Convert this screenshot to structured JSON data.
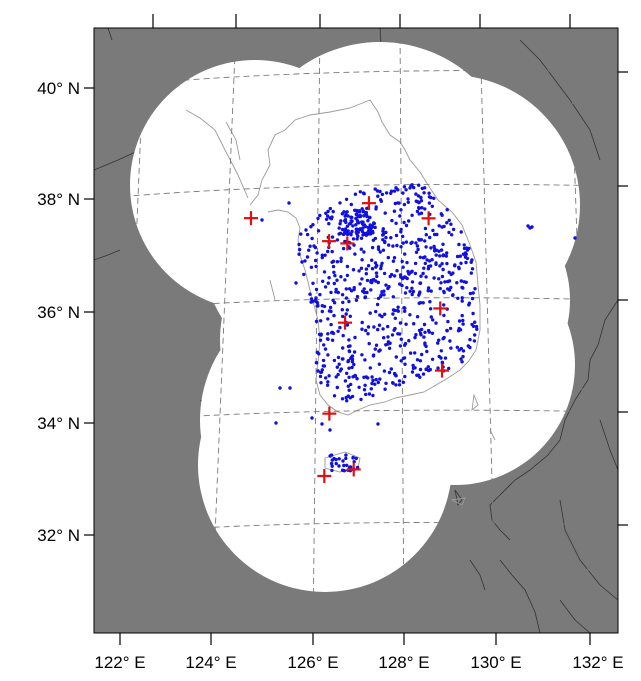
{
  "map": {
    "lat_labels": [
      "40° N",
      "38° N",
      "36° N",
      "34° N",
      "32° N"
    ],
    "lon_labels": [
      "122° E",
      "124° E",
      "126° E",
      "128° E",
      "130° E",
      "132° E"
    ],
    "colors": {
      "outside_domain": "#7a7a7a",
      "domain": "#ffffff",
      "stations": "#1010e0",
      "radar_sites": "#e01010"
    },
    "marker_icons": {
      "stations": "dot-icon",
      "radar_sites": "plus-cross-icon"
    },
    "radar_sites": [
      {
        "lon": 124.7,
        "lat": 37.8
      },
      {
        "lon": 127.3,
        "lat": 38.0
      },
      {
        "lon": 128.6,
        "lat": 37.7
      },
      {
        "lon": 126.4,
        "lat": 37.35
      },
      {
        "lon": 126.8,
        "lat": 37.3
      },
      {
        "lon": 128.8,
        "lat": 36.1
      },
      {
        "lon": 126.7,
        "lat": 35.9
      },
      {
        "lon": 128.8,
        "lat": 35.0
      },
      {
        "lon": 126.3,
        "lat": 34.3
      },
      {
        "lon": 126.15,
        "lat": 33.2
      },
      {
        "lon": 126.8,
        "lat": 33.3
      }
    ]
  }
}
